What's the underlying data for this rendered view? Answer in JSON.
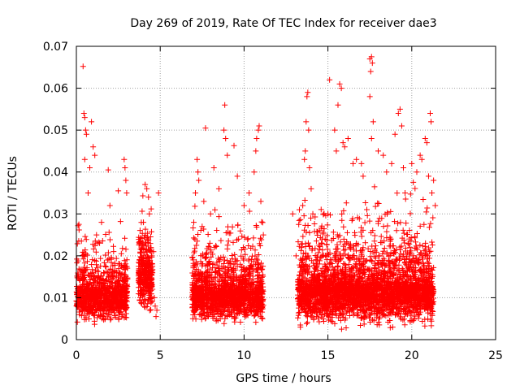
{
  "chart_data": {
    "type": "scatter",
    "title": "Day 269 of 2019, Rate Of TEC Index for receiver dae3",
    "xlabel": "GPS time / hours",
    "ylabel": "ROTI / TECUs",
    "xlim": [
      0,
      25
    ],
    "ylim": [
      0,
      0.07
    ],
    "x_ticks": [
      0,
      5,
      10,
      15,
      20,
      25
    ],
    "y_ticks": [
      0,
      0.01,
      0.02,
      0.03,
      0.04,
      0.05,
      0.06,
      0.07
    ],
    "x_tick_labels": [
      "0",
      "5",
      "10",
      "15",
      "20",
      "25"
    ],
    "y_tick_labels": [
      "0",
      "0.01",
      "0.02",
      "0.03",
      "0.04",
      "0.05",
      "0.06",
      "0.07"
    ],
    "grid": true,
    "marker": "+",
    "color": "#ff0000",
    "series": [
      {
        "name": "ROTI",
        "points": [
          [
            0.1,
            0.0272
          ],
          [
            0.15,
            0.0275
          ],
          [
            0.3,
            0.0235
          ],
          [
            0.35,
            0.02
          ],
          [
            0.4,
            0.0652
          ],
          [
            0.45,
            0.054
          ],
          [
            0.5,
            0.053
          ],
          [
            0.55,
            0.05
          ],
          [
            0.6,
            0.049
          ],
          [
            0.5,
            0.043
          ],
          [
            0.7,
            0.035
          ],
          [
            0.8,
            0.041
          ],
          [
            0.9,
            0.052
          ],
          [
            1.0,
            0.046
          ],
          [
            1.1,
            0.044
          ],
          [
            1.2,
            0.025
          ],
          [
            1.5,
            0.028
          ],
          [
            1.9,
            0.0405
          ],
          [
            2.0,
            0.032
          ],
          [
            2.5,
            0.0355
          ],
          [
            2.85,
            0.043
          ],
          [
            2.9,
            0.041
          ],
          [
            2.95,
            0.038
          ],
          [
            3.0,
            0.035
          ],
          [
            4.0,
            0.028
          ],
          [
            4.1,
            0.037
          ],
          [
            4.2,
            0.036
          ],
          [
            4.3,
            0.034
          ],
          [
            4.35,
            0.03
          ],
          [
            4.5,
            0.021
          ],
          [
            4.6,
            0.021
          ],
          [
            4.65,
            0.01
          ],
          [
            4.7,
            0.008
          ],
          [
            4.75,
            0.0055
          ],
          [
            4.8,
            0.007
          ],
          [
            4.9,
            0.035
          ],
          [
            7.0,
            0.028
          ],
          [
            7.1,
            0.035
          ],
          [
            7.2,
            0.043
          ],
          [
            7.25,
            0.04
          ],
          [
            7.3,
            0.038
          ],
          [
            7.5,
            0.027
          ],
          [
            7.6,
            0.033
          ],
          [
            7.7,
            0.0505
          ],
          [
            8.0,
            0.03
          ],
          [
            8.2,
            0.041
          ],
          [
            8.5,
            0.036
          ],
          [
            8.8,
            0.05
          ],
          [
            8.85,
            0.056
          ],
          [
            8.9,
            0.048
          ],
          [
            9.0,
            0.044
          ],
          [
            9.4,
            0.0463
          ],
          [
            9.6,
            0.039
          ],
          [
            10.0,
            0.032
          ],
          [
            10.3,
            0.035
          ],
          [
            10.6,
            0.04
          ],
          [
            10.7,
            0.045
          ],
          [
            10.75,
            0.048
          ],
          [
            10.85,
            0.05
          ],
          [
            10.9,
            0.051
          ],
          [
            11.0,
            0.033
          ],
          [
            11.05,
            0.01
          ],
          [
            11.1,
            0.005
          ],
          [
            11.15,
            0.025
          ],
          [
            12.9,
            0.03
          ],
          [
            13.1,
            0.02
          ],
          [
            13.3,
            0.031
          ],
          [
            13.5,
            0.032
          ],
          [
            13.6,
            0.043
          ],
          [
            13.65,
            0.045
          ],
          [
            13.7,
            0.052
          ],
          [
            13.75,
            0.058
          ],
          [
            13.8,
            0.059
          ],
          [
            13.85,
            0.05
          ],
          [
            13.9,
            0.041
          ],
          [
            14.0,
            0.036
          ],
          [
            14.1,
            0.03
          ],
          [
            14.5,
            0.026
          ],
          [
            15.0,
            0.03
          ],
          [
            15.1,
            0.062
          ],
          [
            15.4,
            0.05
          ],
          [
            15.5,
            0.045
          ],
          [
            15.6,
            0.056
          ],
          [
            15.7,
            0.061
          ],
          [
            15.8,
            0.06
          ],
          [
            15.9,
            0.047
          ],
          [
            16.0,
            0.046
          ],
          [
            16.2,
            0.048
          ],
          [
            16.5,
            0.042
          ],
          [
            16.7,
            0.043
          ],
          [
            17.0,
            0.042
          ],
          [
            17.1,
            0.039
          ],
          [
            17.5,
            0.067
          ],
          [
            17.6,
            0.0675
          ],
          [
            17.65,
            0.066
          ],
          [
            17.55,
            0.064
          ],
          [
            17.5,
            0.058
          ],
          [
            17.7,
            0.052
          ],
          [
            17.6,
            0.048
          ],
          [
            18.0,
            0.045
          ],
          [
            18.3,
            0.044
          ],
          [
            18.5,
            0.04
          ],
          [
            18.8,
            0.042
          ],
          [
            19.0,
            0.049
          ],
          [
            19.2,
            0.054
          ],
          [
            19.3,
            0.055
          ],
          [
            19.4,
            0.051
          ],
          [
            19.5,
            0.041
          ],
          [
            19.6,
            0.035
          ],
          [
            20.0,
            0.042
          ],
          [
            20.3,
            0.04
          ],
          [
            20.5,
            0.044
          ],
          [
            20.6,
            0.043
          ],
          [
            20.8,
            0.048
          ],
          [
            20.9,
            0.047
          ],
          [
            21.0,
            0.039
          ],
          [
            21.1,
            0.054
          ],
          [
            21.15,
            0.052
          ],
          [
            21.2,
            0.035
          ],
          [
            21.3,
            0.038
          ],
          [
            21.4,
            0.032
          ]
        ]
      }
    ],
    "dense_bands": [
      {
        "x_range": [
          0.0,
          3.05
        ],
        "y_range": [
          0.003,
          0.031
        ],
        "y_median": 0.011,
        "points": 1000
      },
      {
        "x_range": [
          3.7,
          4.55
        ],
        "y_range": [
          0.005,
          0.038
        ],
        "y_median": 0.016,
        "points": 350
      },
      {
        "x_range": [
          6.9,
          11.15
        ],
        "y_range": [
          0.003,
          0.036
        ],
        "y_median": 0.011,
        "points": 1500
      },
      {
        "x_range": [
          13.2,
          21.3
        ],
        "y_range": [
          0.002,
          0.04
        ],
        "y_median": 0.012,
        "points": 3200
      }
    ]
  }
}
